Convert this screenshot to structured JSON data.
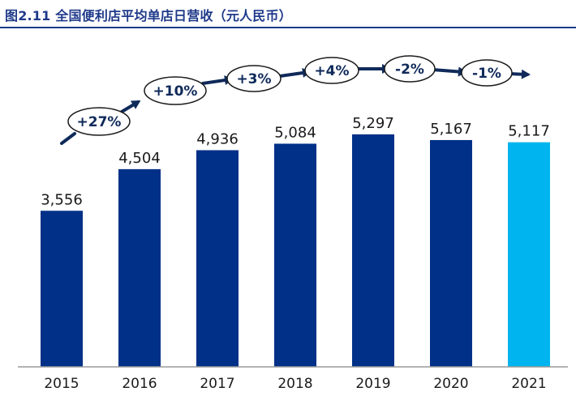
{
  "title": "图2.11 全国便利店平均单店日营收（元人民币）",
  "chart_data": {
    "type": "bar",
    "title": "图2.11 全国便利店平均单店日营收（元人民币）",
    "categories": [
      "2015",
      "2016",
      "2017",
      "2018",
      "2019",
      "2020",
      "2021"
    ],
    "values": [
      3556,
      4504,
      4936,
      5084,
      5297,
      5167,
      5117
    ],
    "value_labels": [
      "3,556",
      "4,504",
      "4,936",
      "5,084",
      "5,297",
      "5,167",
      "5,117"
    ],
    "growth_labels": [
      "+27%",
      "+10%",
      "+3%",
      "+4%",
      "-2%",
      "-1%"
    ],
    "ylim": [
      0,
      5500
    ],
    "grid": false,
    "legend": "none",
    "colors": {
      "bar": "#003087",
      "highlight_bar": "#00b5ef",
      "highlight_index": 6,
      "title": "#1f3a8a",
      "arrow": "#0f2a5a"
    }
  }
}
